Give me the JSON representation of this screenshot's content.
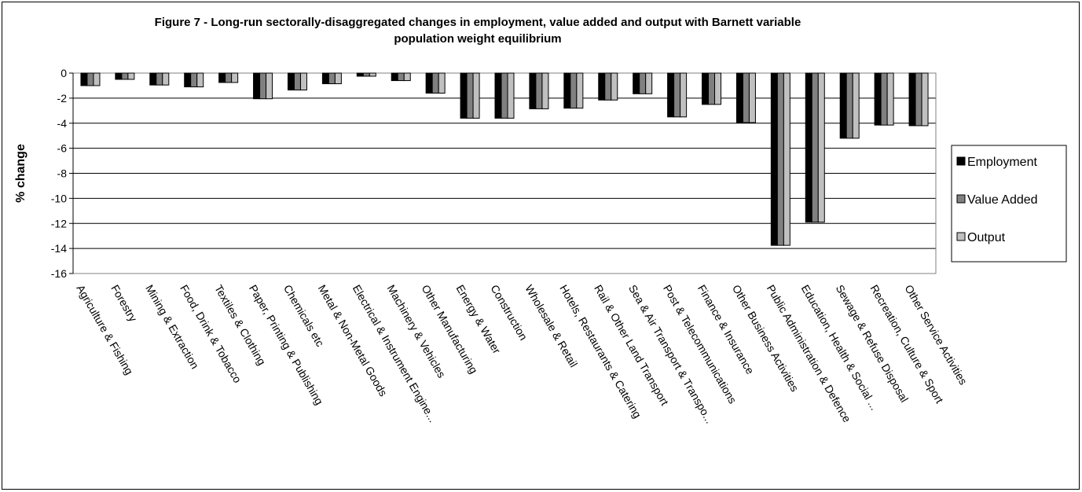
{
  "chart_data": {
    "type": "bar",
    "title_lines": [
      "Figure 7 - Long-run sectorally-disaggregated changes in employment, value added and output with Barnett variable",
      "population weight equilibrium"
    ],
    "xlabel": "",
    "ylabel": "% change",
    "ylim": [
      -16,
      0
    ],
    "yticks": [
      0,
      -2,
      -4,
      -6,
      -8,
      -10,
      -12,
      -14,
      -16
    ],
    "ytick_labels": [
      "0",
      "-2",
      "-4",
      "-6",
      "-8",
      "-10",
      "-12",
      "-14",
      "-16"
    ],
    "grid": true,
    "legend_position": "right",
    "categories": [
      "Agriculture & Fishing",
      "Forestry",
      "Mining & Extraction",
      "Food, Drink & Tobacco",
      "Textiles & Clothing",
      "Paper, Printing & Publishing",
      "Chemicals etc",
      "Metal & Non-Metal Goods",
      "Electrical & Instrument Engine...",
      "Machinery & Vehicles",
      "Other Manufacturing",
      "Energy & Water",
      "Construction",
      "Wholesale & Retail",
      "Hotels, Restaurants & Catering",
      "Rail & Other Land Transport",
      "Sea & Air Transport & Transpo...",
      "Post & Telecommunications",
      "Finance & Insurance",
      "Other Business Activities",
      "Public Administration & Defence",
      "Education, Health & Social ...",
      "Sewage & Refuse Disposal",
      "Recreation, Culture & Sport",
      "Other Service Activities"
    ],
    "series": [
      {
        "name": "Employment",
        "color": "#000000",
        "values": [
          -1.0,
          -0.5,
          -0.95,
          -1.1,
          -0.75,
          -2.05,
          -1.35,
          -0.85,
          -0.25,
          -0.6,
          -1.6,
          -3.6,
          -3.6,
          -2.85,
          -2.8,
          -2.15,
          -1.65,
          -3.5,
          -2.5,
          -3.95,
          -13.75,
          -11.9,
          -5.2,
          -4.15,
          -4.2
        ]
      },
      {
        "name": "Value Added",
        "color": "#808080",
        "values": [
          -1.0,
          -0.5,
          -0.95,
          -1.1,
          -0.75,
          -2.05,
          -1.35,
          -0.85,
          -0.25,
          -0.6,
          -1.6,
          -3.6,
          -3.6,
          -2.85,
          -2.8,
          -2.15,
          -1.65,
          -3.5,
          -2.5,
          -3.95,
          -13.75,
          -11.9,
          -5.2,
          -4.15,
          -4.2
        ]
      },
      {
        "name": "Output",
        "color": "#c0c0c0",
        "values": [
          -1.0,
          -0.5,
          -0.95,
          -1.1,
          -0.75,
          -2.05,
          -1.35,
          -0.85,
          -0.25,
          -0.6,
          -1.6,
          -3.6,
          -3.6,
          -2.85,
          -2.8,
          -2.15,
          -1.65,
          -3.5,
          -2.5,
          -3.95,
          -13.75,
          -11.9,
          -5.2,
          -4.15,
          -4.2
        ]
      }
    ]
  }
}
